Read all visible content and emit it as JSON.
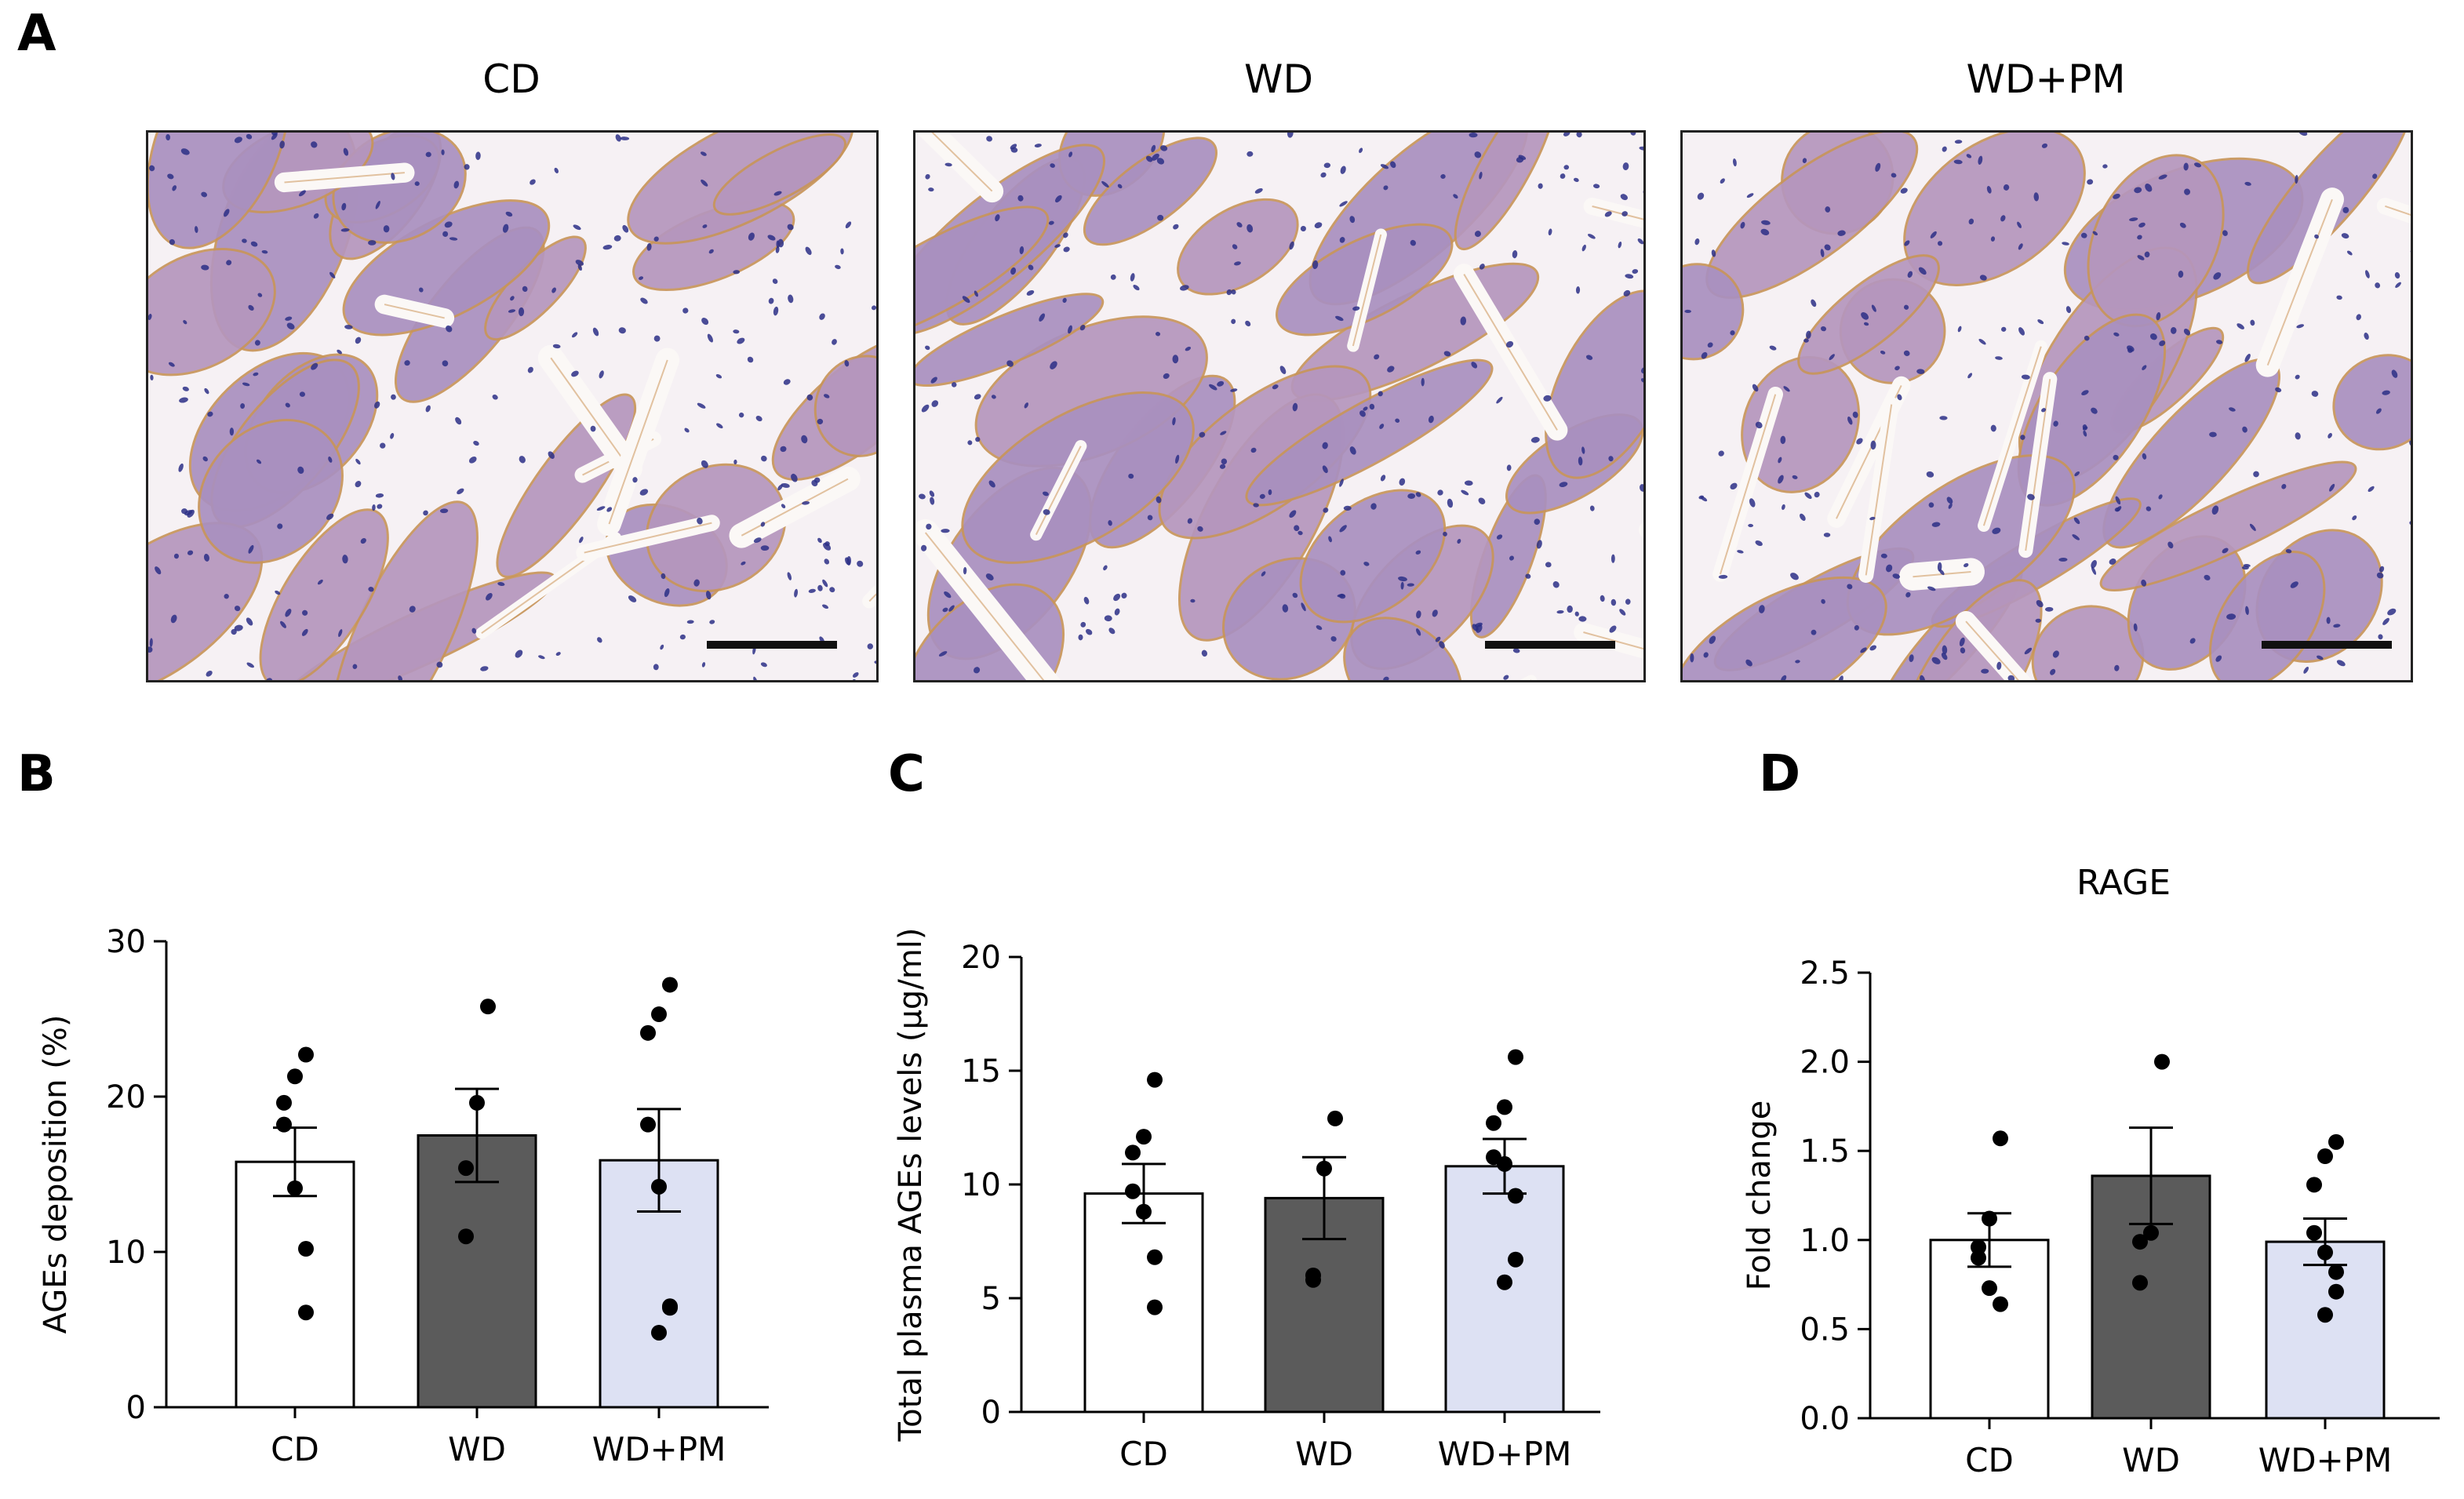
{
  "panels": {
    "a": "A",
    "b": "B",
    "c": "C",
    "d": "D"
  },
  "micrographs": [
    {
      "label": "CD"
    },
    {
      "label": "WD"
    },
    {
      "label": "WD+PM"
    }
  ],
  "colors": {
    "CD": "#ffffff",
    "WD": "#5b5b5b",
    "WD+PM": "#dde1f3",
    "tissue": "#a98fbd",
    "stain": "#c88a4a",
    "nuclei": "#2b2f86"
  },
  "chart_data": [
    {
      "type": "bar",
      "panel": "B",
      "title": "",
      "xlabel": "",
      "ylabel": "AGEs deposition (%)",
      "categories": [
        "CD",
        "WD",
        "WD+PM"
      ],
      "values": [
        15.8,
        17.5,
        15.9
      ],
      "sem": [
        2.2,
        3.0,
        3.3
      ],
      "ylim": [
        0,
        30
      ],
      "yticks": [
        "0",
        "10",
        "20",
        "30"
      ],
      "points": [
        [
          22.7,
          21.3,
          19.6,
          18.2,
          14.1,
          10.2,
          6.1
        ],
        [
          25.8,
          19.6,
          15.4,
          11.0
        ],
        [
          27.2,
          25.3,
          24.1,
          18.2,
          14.2,
          6.5,
          6.4,
          4.8
        ]
      ]
    },
    {
      "type": "bar",
      "panel": "C",
      "title": "",
      "xlabel": "",
      "ylabel": "Total plasma AGEs levels (µg/ml)",
      "categories": [
        "CD",
        "WD",
        "WD+PM"
      ],
      "values": [
        9.6,
        9.4,
        10.8
      ],
      "sem": [
        1.3,
        1.8,
        1.2
      ],
      "ylim": [
        0,
        20
      ],
      "yticks": [
        "0",
        "5",
        "10",
        "15",
        "20"
      ],
      "points": [
        [
          14.6,
          12.1,
          11.4,
          9.7,
          8.8,
          6.8,
          4.6
        ],
        [
          12.9,
          10.7,
          6.0,
          5.8
        ],
        [
          15.6,
          13.4,
          12.7,
          11.2,
          10.9,
          9.5,
          6.7,
          5.7
        ]
      ]
    },
    {
      "type": "bar",
      "panel": "D",
      "title": "RAGE",
      "xlabel": "",
      "ylabel": "Fold change",
      "categories": [
        "CD",
        "WD",
        "WD+PM"
      ],
      "values": [
        1.0,
        1.36,
        0.99
      ],
      "sem": [
        0.15,
        0.27,
        0.13
      ],
      "ylim": [
        0,
        2.5
      ],
      "yticks": [
        "0.0",
        "0.5",
        "1.0",
        "1.5",
        "2.0",
        "2.5"
      ],
      "points": [
        [
          1.57,
          1.12,
          0.96,
          0.9,
          0.73,
          0.64
        ],
        [
          2.0,
          1.04,
          0.99,
          0.76
        ],
        [
          1.55,
          1.47,
          1.31,
          1.04,
          0.93,
          0.82,
          0.71,
          0.58
        ]
      ]
    }
  ]
}
